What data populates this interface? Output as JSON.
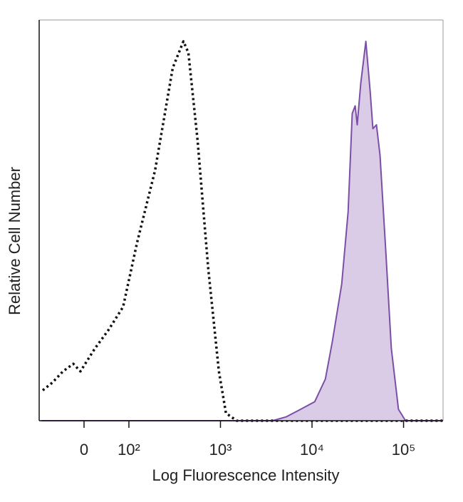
{
  "chart_data": {
    "type": "line",
    "xlabel": "Log Fluorescence Intensity",
    "ylabel": "Relative Cell Number",
    "xscale": "biexponential",
    "xlim": [
      -100,
      270000
    ],
    "xticks": [
      0,
      {
        "value": 100,
        "label": "10²"
      },
      {
        "value": 1000,
        "label": "10³"
      },
      {
        "value": 10000,
        "label": "10⁴"
      },
      {
        "value": 100000,
        "label": "10⁵"
      }
    ],
    "ylim": [
      0,
      100
    ],
    "series": [
      {
        "color": "#111111",
        "dashed": true,
        "x": [
          -92,
          -71,
          -47,
          -24,
          -8,
          24,
          55,
          87,
          123,
          193,
          301,
          394,
          447,
          562,
          736,
          962,
          1148,
          1503,
          266000
        ],
        "values": [
          8,
          10,
          13,
          15,
          13,
          19,
          24,
          30,
          47,
          66,
          93,
          100,
          97,
          74,
          40,
          13,
          2,
          0,
          0
        ]
      },
      {
        "color": "#7b4fa6",
        "fill": "#dacbe6",
        "x": [
          -95,
          3700,
          5200,
          7500,
          10700,
          14000,
          16700,
          21100,
          24800,
          27500,
          29600,
          31200,
          34100,
          38700,
          43100,
          46200,
          50600,
          55300,
          63800,
          73600,
          87900,
          105000,
          266000
        ],
        "values": [
          0,
          0,
          1,
          3,
          5,
          11,
          21,
          36,
          55,
          81,
          83,
          78,
          89,
          100,
          87,
          77,
          78,
          70,
          45,
          19,
          3,
          0,
          0
        ]
      }
    ]
  }
}
